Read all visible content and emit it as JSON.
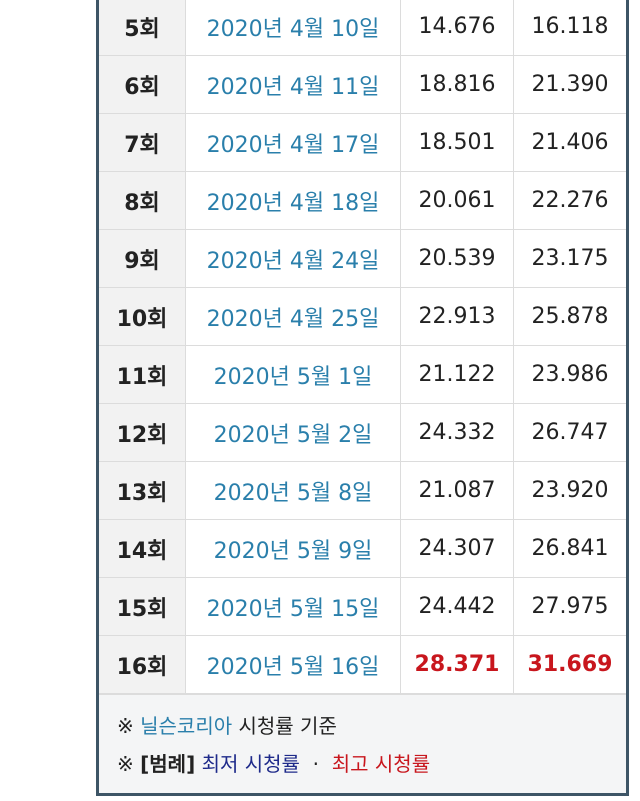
{
  "rows": [
    {
      "episode": "5회",
      "date": "2020년 4월 10일",
      "v1": "14.676",
      "v2": "16.118"
    },
    {
      "episode": "6회",
      "date": "2020년 4월 11일",
      "v1": "18.816",
      "v2": "21.390"
    },
    {
      "episode": "7회",
      "date": "2020년 4월 17일",
      "v1": "18.501",
      "v2": "21.406"
    },
    {
      "episode": "8회",
      "date": "2020년 4월 18일",
      "v1": "20.061",
      "v2": "22.276"
    },
    {
      "episode": "9회",
      "date": "2020년 4월 24일",
      "v1": "20.539",
      "v2": "23.175"
    },
    {
      "episode": "10회",
      "date": "2020년 4월 25일",
      "v1": "22.913",
      "v2": "25.878"
    },
    {
      "episode": "11회",
      "date": "2020년 5월 1일",
      "v1": "21.122",
      "v2": "23.986"
    },
    {
      "episode": "12회",
      "date": "2020년 5월 2일",
      "v1": "24.332",
      "v2": "26.747"
    },
    {
      "episode": "13회",
      "date": "2020년 5월 8일",
      "v1": "21.087",
      "v2": "23.920"
    },
    {
      "episode": "14회",
      "date": "2020년 5월 9일",
      "v1": "24.307",
      "v2": "26.841"
    },
    {
      "episode": "15회",
      "date": "2020년 5월 15일",
      "v1": "24.442",
      "v2": "27.975"
    },
    {
      "episode": "16회",
      "date": "2020년 5월 16일",
      "v1": "28.371",
      "v2": "31.669",
      "highlight": "max"
    }
  ],
  "footer": {
    "mark": "※",
    "source_link": "닐슨코리아",
    "source_text": "시청률 기준",
    "legend_label": "[범례]",
    "legend_min": "최저 시청률",
    "legend_sep": "·",
    "legend_max": "최고 시청률"
  },
  "colors": {
    "date_link": "#2a7fab",
    "max": "#c8161d",
    "min": "#1e2a8a",
    "border": "#3d5566"
  }
}
